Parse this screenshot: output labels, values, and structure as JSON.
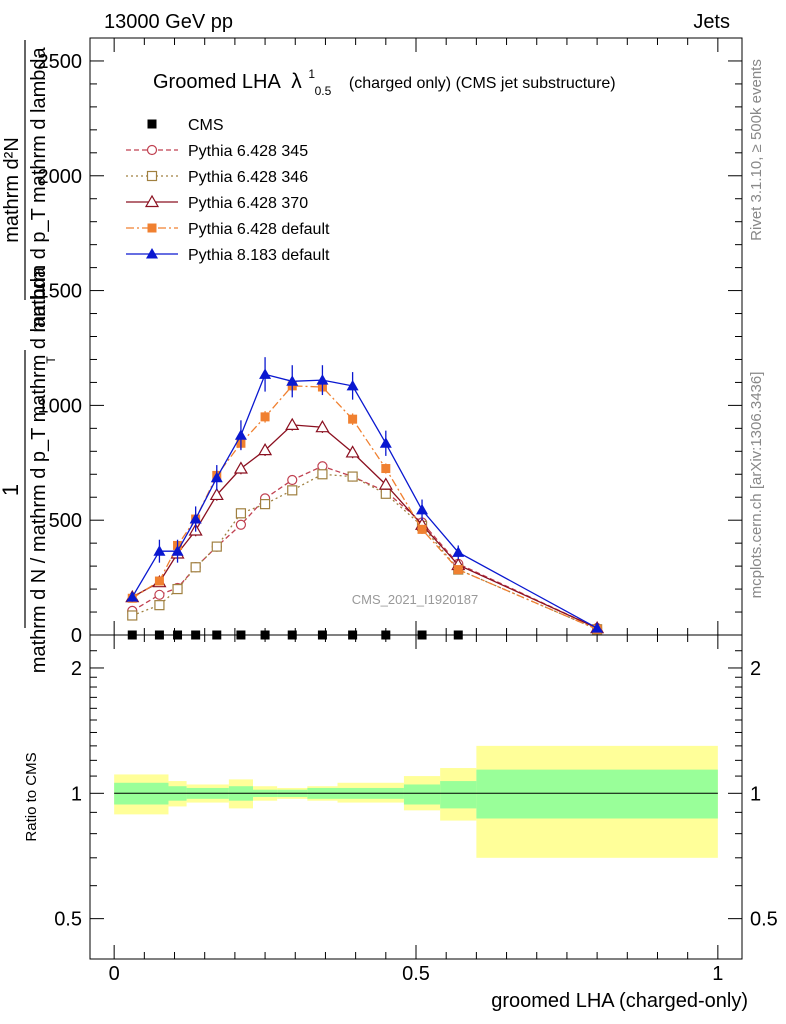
{
  "header": {
    "energy_label": "13000 GeV pp",
    "category_label": "Jets"
  },
  "side_labels": {
    "rivet": "Rivet 3.1.10, ≥ 500k events",
    "mcplots": "mcplots.cern.ch [arXiv:1306.3436]"
  },
  "chart_data": [
    {
      "type": "scatter",
      "panel": "main",
      "title_main": "Groomed LHA",
      "title_lambda": "λ",
      "title_sup": "1",
      "title_sub": "0.5",
      "title_rest": "(charged only) (CMS jet substructure)",
      "watermark": "CMS_2021_I1920187",
      "ylabel_numerator": "1",
      "ylabel_denominator": "mathrm d N / mathrm d p_T mathrm d lambda",
      "ylabel_top_numerator": "mathrm d²N",
      "ylabel_top_denominator": "mathrm d p_T mathrm d lambda",
      "ylabel_T": "T",
      "ylim": [
        0,
        2600
      ],
      "xlim": [
        -0.04,
        1.04
      ],
      "y_ticks": [
        {
          "value": 0,
          "label": "0"
        },
        {
          "value": 500,
          "label": "500"
        },
        {
          "value": 1000,
          "label": "1000"
        },
        {
          "value": 1500,
          "label": "1500"
        },
        {
          "value": 2000,
          "label": "2000"
        },
        {
          "value": 2500,
          "label": "2500"
        }
      ],
      "x_bin_edges": [
        0,
        0.06,
        0.09,
        0.12,
        0.15,
        0.19,
        0.23,
        0.27,
        0.32,
        0.37,
        0.42,
        0.48,
        0.54,
        0.6,
        1.0
      ],
      "series": [
        {
          "name": "CMS",
          "label": "CMS",
          "color": "#000000",
          "marker": "filled-square",
          "x": [
            0.03,
            0.075,
            0.105,
            0.135,
            0.17,
            0.21,
            0.25,
            0.295,
            0.345,
            0.395,
            0.45,
            0.51,
            0.57
          ],
          "values": [
            0,
            0,
            0,
            0,
            0,
            0,
            0,
            0,
            0,
            0,
            0,
            0,
            0
          ]
        },
        {
          "name": "Pythia 6.428 345",
          "label": "Pythia 6.428 345",
          "color": "#c04050",
          "dash": "5,3",
          "marker": "open-circle",
          "x": [
            0.03,
            0.075,
            0.105,
            0.135,
            0.17,
            0.21,
            0.25,
            0.295,
            0.345,
            0.395,
            0.45,
            0.51,
            0.57,
            0.8
          ],
          "values": [
            105,
            175,
            205,
            295,
            385,
            480,
            595,
            675,
            735,
            690,
            625,
            490,
            310,
            30
          ],
          "errors": [
            10,
            12,
            12,
            15,
            15,
            18,
            18,
            18,
            18,
            18,
            18,
            15,
            12,
            5
          ]
        },
        {
          "name": "Pythia 6.428 346",
          "label": "Pythia 6.428 346",
          "color": "#a08040",
          "dash": "2,3",
          "marker": "open-square",
          "x": [
            0.03,
            0.075,
            0.105,
            0.135,
            0.17,
            0.21,
            0.25,
            0.295,
            0.345,
            0.395,
            0.45,
            0.51,
            0.57,
            0.8
          ],
          "values": [
            85,
            130,
            200,
            295,
            385,
            530,
            570,
            630,
            700,
            690,
            615,
            475,
            285,
            25
          ],
          "errors": [
            10,
            12,
            12,
            15,
            15,
            18,
            18,
            18,
            18,
            18,
            18,
            15,
            12,
            5
          ]
        },
        {
          "name": "Pythia 6.428 370",
          "label": "Pythia 6.428 370",
          "color": "#8b1020",
          "dash": "",
          "marker": "open-triangle",
          "x": [
            0.03,
            0.075,
            0.105,
            0.135,
            0.17,
            0.21,
            0.25,
            0.295,
            0.345,
            0.395,
            0.45,
            0.51,
            0.57,
            0.8
          ],
          "values": [
            165,
            230,
            355,
            455,
            610,
            725,
            805,
            915,
            905,
            795,
            655,
            480,
            305,
            30
          ],
          "errors": [
            15,
            18,
            20,
            25,
            25,
            25,
            25,
            25,
            25,
            25,
            22,
            20,
            15,
            5
          ]
        },
        {
          "name": "Pythia 6.428 default",
          "label": "Pythia 6.428 default",
          "color": "#f08030",
          "dash": "8,3,2,3",
          "marker": "filled-square",
          "x": [
            0.03,
            0.075,
            0.105,
            0.135,
            0.17,
            0.21,
            0.25,
            0.295,
            0.345,
            0.395,
            0.45,
            0.51,
            0.57,
            0.8
          ],
          "values": [
            160,
            235,
            390,
            505,
            695,
            835,
            950,
            1085,
            1080,
            940,
            725,
            460,
            285,
            25
          ],
          "errors": [
            15,
            18,
            20,
            25,
            25,
            25,
            25,
            25,
            25,
            25,
            22,
            20,
            15,
            5
          ]
        },
        {
          "name": "Pythia 8.183 default",
          "label": "Pythia 8.183 default",
          "color": "#0a18d0",
          "dash": "",
          "marker": "filled-triangle",
          "x": [
            0.03,
            0.075,
            0.105,
            0.135,
            0.17,
            0.21,
            0.25,
            0.295,
            0.345,
            0.395,
            0.45,
            0.51,
            0.57,
            0.8
          ],
          "values": [
            165,
            365,
            365,
            505,
            685,
            870,
            1135,
            1105,
            1110,
            1085,
            835,
            545,
            360,
            30
          ],
          "errors": [
            20,
            50,
            50,
            55,
            55,
            65,
            75,
            70,
            65,
            60,
            55,
            45,
            30,
            8
          ]
        }
      ]
    },
    {
      "type": "area",
      "panel": "ratio",
      "ylabel": "Ratio to CMS",
      "xlabel": "groomed LHA (charged-only)",
      "ylim": [
        0.4,
        2.4
      ],
      "xlim": [
        -0.04,
        1.04
      ],
      "reference_line": 1,
      "y_ticks": [
        {
          "value": 0.5,
          "label": "0.5"
        },
        {
          "value": 1,
          "label": "1"
        },
        {
          "value": 2,
          "label": "2"
        }
      ],
      "x_ticks": [
        {
          "value": 0,
          "label": "0"
        },
        {
          "value": 0.5,
          "label": "0.5"
        },
        {
          "value": 1,
          "label": "1"
        }
      ],
      "bin_edges": [
        0,
        0.09,
        0.12,
        0.19,
        0.23,
        0.27,
        0.32,
        0.37,
        0.48,
        0.54,
        0.6,
        1.0
      ],
      "band_outer_yellow": {
        "color": "#ffff99",
        "low": [
          0.89,
          0.93,
          0.95,
          0.92,
          0.96,
          0.97,
          0.96,
          0.95,
          0.91,
          0.86,
          0.7
        ],
        "high": [
          1.11,
          1.07,
          1.05,
          1.08,
          1.04,
          1.03,
          1.04,
          1.06,
          1.1,
          1.15,
          1.3
        ]
      },
      "band_inner_green": {
        "color": "#99ff99",
        "low": [
          0.94,
          0.96,
          0.97,
          0.96,
          0.98,
          0.98,
          0.97,
          0.97,
          0.94,
          0.92,
          0.87
        ],
        "high": [
          1.06,
          1.04,
          1.03,
          1.04,
          1.02,
          1.02,
          1.03,
          1.03,
          1.05,
          1.07,
          1.14
        ]
      }
    }
  ]
}
